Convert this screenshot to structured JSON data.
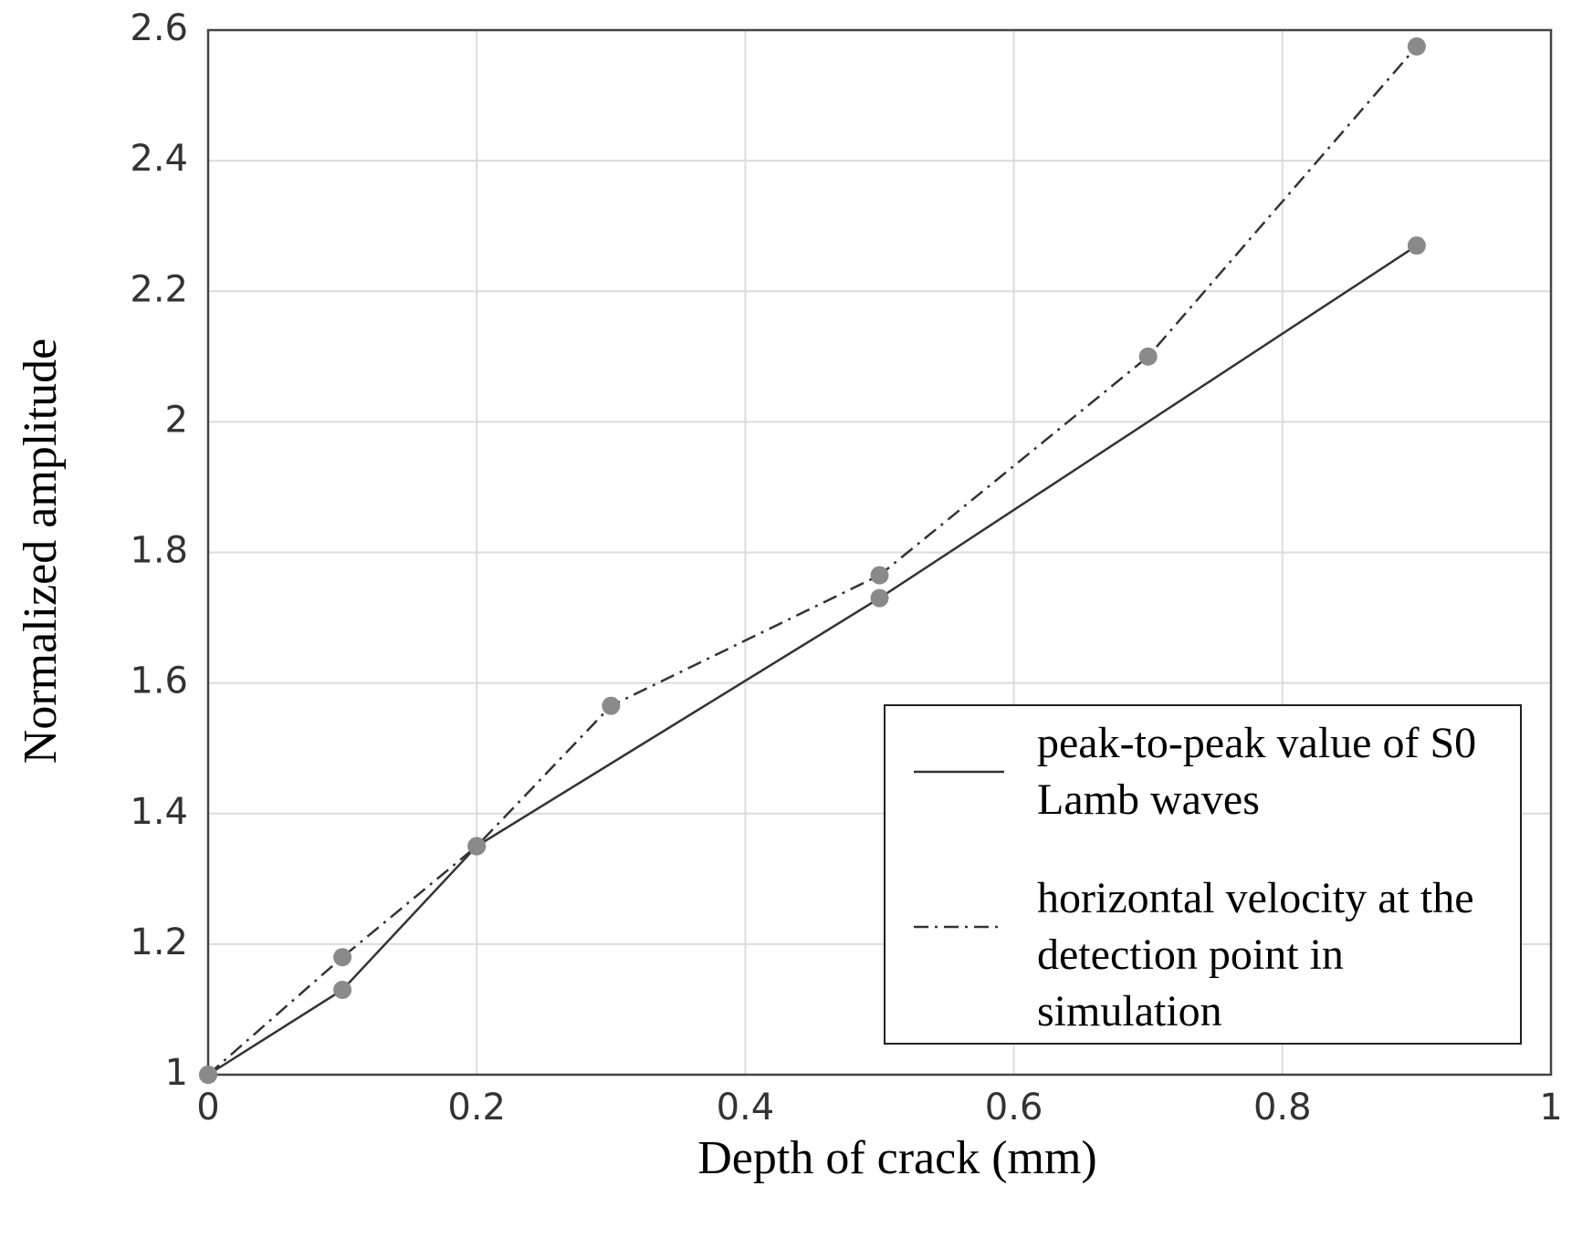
{
  "chart_data": {
    "type": "line",
    "x_label": "Depth of crack (mm)",
    "y_label": "Normalized amplitude",
    "xlim": [
      0,
      1
    ],
    "xticks": [
      0,
      0.2,
      0.4,
      0.6,
      0.8,
      1
    ],
    "ylim": [
      1,
      2.6
    ],
    "yticks": [
      1,
      1.2,
      1.4,
      1.6,
      1.8,
      2,
      2.2,
      2.4,
      2.6
    ],
    "grid": true,
    "legend": "lower-right",
    "series": [
      {
        "name": "peak-to-peak value of S0 Lamb waves",
        "color": "#333333",
        "style": "solid",
        "marker_color": "#8a8a8a",
        "x": [
          0,
          0.1,
          0.2,
          0.5,
          0.9
        ],
        "values": [
          1,
          1.13,
          1.35,
          1.73,
          2.27
        ]
      },
      {
        "name": "horizontal velocity at the detection point in simulation",
        "color": "#333333",
        "style": "dashdot",
        "marker_color": "#8a8a8a",
        "x": [
          0,
          0.1,
          0.2,
          0.3,
          0.5,
          0.7,
          0.9
        ],
        "values": [
          1,
          1.18,
          1.35,
          1.565,
          1.765,
          2.1,
          2.575
        ]
      }
    ]
  }
}
